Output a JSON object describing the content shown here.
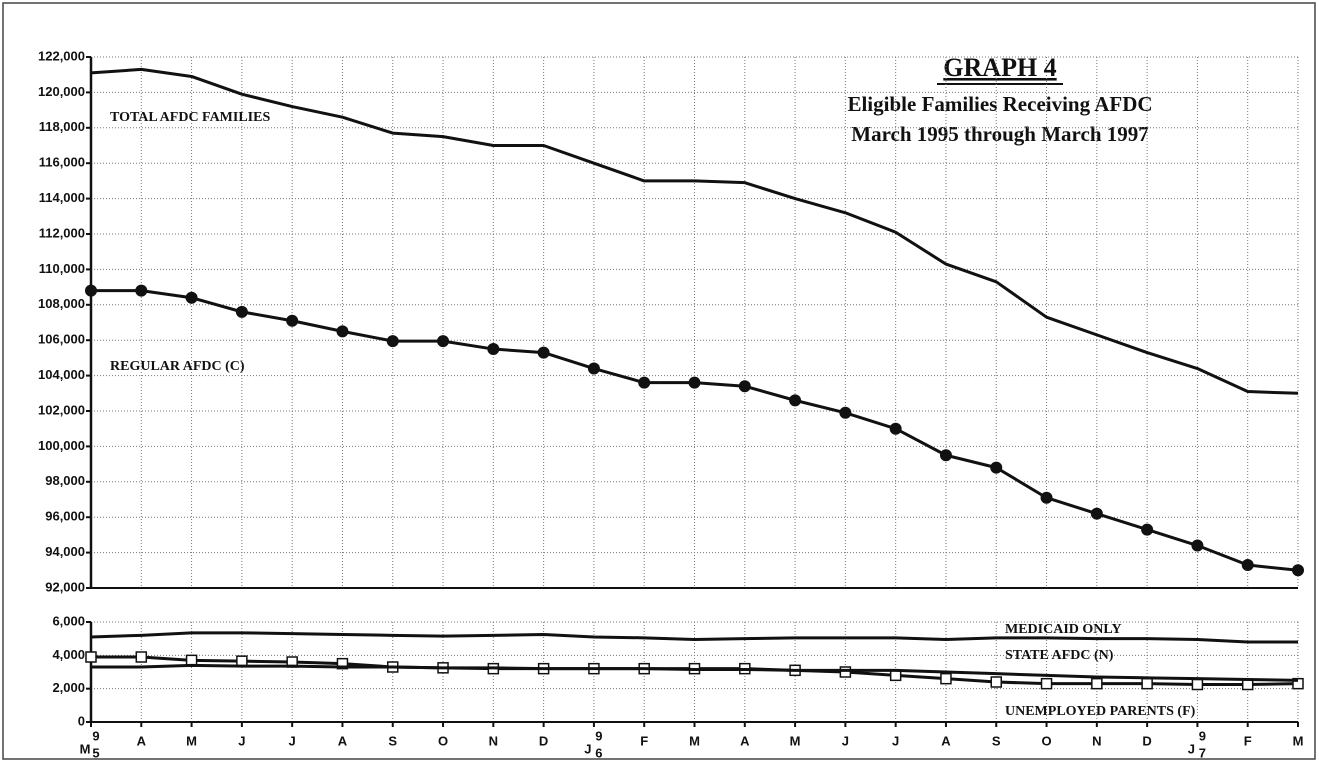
{
  "chart_data": [
    {
      "type": "line",
      "title": "GRAPH 4",
      "subtitle": [
        "Eligible Families Receiving AFDC",
        "March 1995 through March 1997"
      ],
      "categories": [
        "M",
        "A",
        "M",
        "J",
        "J",
        "A",
        "S",
        "O",
        "N",
        "D",
        "J",
        "F",
        "M",
        "A",
        "M",
        "J",
        "J",
        "A",
        "S",
        "O",
        "N",
        "D",
        "J",
        "F",
        "M"
      ],
      "ylim": [
        92000,
        122000
      ],
      "yticks": [
        {
          "value": 92000,
          "label": "92,000"
        },
        {
          "value": 94000,
          "label": "94,000"
        },
        {
          "value": 96000,
          "label": "96,000"
        },
        {
          "value": 98000,
          "label": "98,000"
        },
        {
          "value": 100000,
          "label": "100,000"
        },
        {
          "value": 102000,
          "label": "102,000"
        },
        {
          "value": 104000,
          "label": "104,000"
        },
        {
          "value": 106000,
          "label": "106,000"
        },
        {
          "value": 108000,
          "label": "108,000"
        },
        {
          "value": 110000,
          "label": "110,000"
        },
        {
          "value": 112000,
          "label": "112,000"
        },
        {
          "value": 114000,
          "label": "114,000"
        },
        {
          "value": 116000,
          "label": "116,000"
        },
        {
          "value": 118000,
          "label": "118,000"
        },
        {
          "value": 120000,
          "label": "120,000"
        },
        {
          "value": 122000,
          "label": "122,000"
        }
      ],
      "grid": true,
      "series": [
        {
          "name": "TOTAL AFDC FAMILIES",
          "color": "#111111",
          "marker": null,
          "values": [
            121100,
            121300,
            120900,
            119900,
            119200,
            118600,
            117700,
            117500,
            117000,
            117000,
            116000,
            115000,
            115000,
            114900,
            114000,
            113200,
            112100,
            110300,
            109300,
            107300,
            106300,
            105300,
            104400,
            103100,
            103000
          ]
        },
        {
          "name": "REGULAR AFDC (C)",
          "color": "#111111",
          "marker": "circle",
          "values": [
            108800,
            108800,
            108400,
            107600,
            107100,
            106500,
            105950,
            105950,
            105500,
            105300,
            104400,
            103600,
            103600,
            103400,
            102600,
            101900,
            101000,
            99500,
            98800,
            97100,
            96200,
            95300,
            94400,
            93300,
            93000
          ]
        }
      ]
    },
    {
      "type": "line",
      "categories": [
        "M",
        "A",
        "M",
        "J",
        "J",
        "A",
        "S",
        "O",
        "N",
        "D",
        "J",
        "F",
        "M",
        "A",
        "M",
        "J",
        "J",
        "A",
        "S",
        "O",
        "N",
        "D",
        "J",
        "F",
        "M"
      ],
      "category_years": [
        [
          "9",
          "5"
        ],
        null,
        null,
        null,
        null,
        null,
        null,
        null,
        null,
        null,
        [
          "9",
          "6"
        ],
        null,
        null,
        null,
        null,
        null,
        null,
        null,
        null,
        null,
        null,
        null,
        [
          "9",
          "7"
        ],
        null,
        null
      ],
      "ylim": [
        0,
        6000
      ],
      "yticks": [
        0,
        {
          "value": 2000,
          "label": "2,000"
        },
        {
          "value": 4000,
          "label": "4,000"
        },
        {
          "value": 6000,
          "label": "6,000"
        }
      ],
      "grid": true,
      "series": [
        {
          "name": "MEDICAID ONLY",
          "color": "#111111",
          "marker": null,
          "values": [
            5100,
            5200,
            5350,
            5350,
            5300,
            5250,
            5200,
            5150,
            5200,
            5250,
            5100,
            5050,
            4950,
            5000,
            5050,
            5050,
            5050,
            4950,
            5050,
            5050,
            5000,
            5000,
            4950,
            4800,
            4800
          ]
        },
        {
          "name": "STATE AFDC (N)",
          "color": "#111111",
          "marker": "square",
          "values": [
            3900,
            3900,
            3700,
            3650,
            3600,
            3500,
            3300,
            3250,
            3200,
            3200,
            3200,
            3200,
            3200,
            3200,
            3100,
            3000,
            2800,
            2600,
            2400,
            2300,
            2300,
            2300,
            2250,
            2250,
            2300
          ]
        },
        {
          "name": "UNEMPLOYED PARENTS (F)",
          "color": "#111111",
          "marker": null,
          "values": [
            3300,
            3300,
            3400,
            3350,
            3350,
            3300,
            3300,
            3250,
            3250,
            3200,
            3200,
            3200,
            3150,
            3150,
            3100,
            3100,
            3100,
            3000,
            2900,
            2800,
            2700,
            2650,
            2600,
            2550,
            2500
          ]
        }
      ]
    }
  ]
}
